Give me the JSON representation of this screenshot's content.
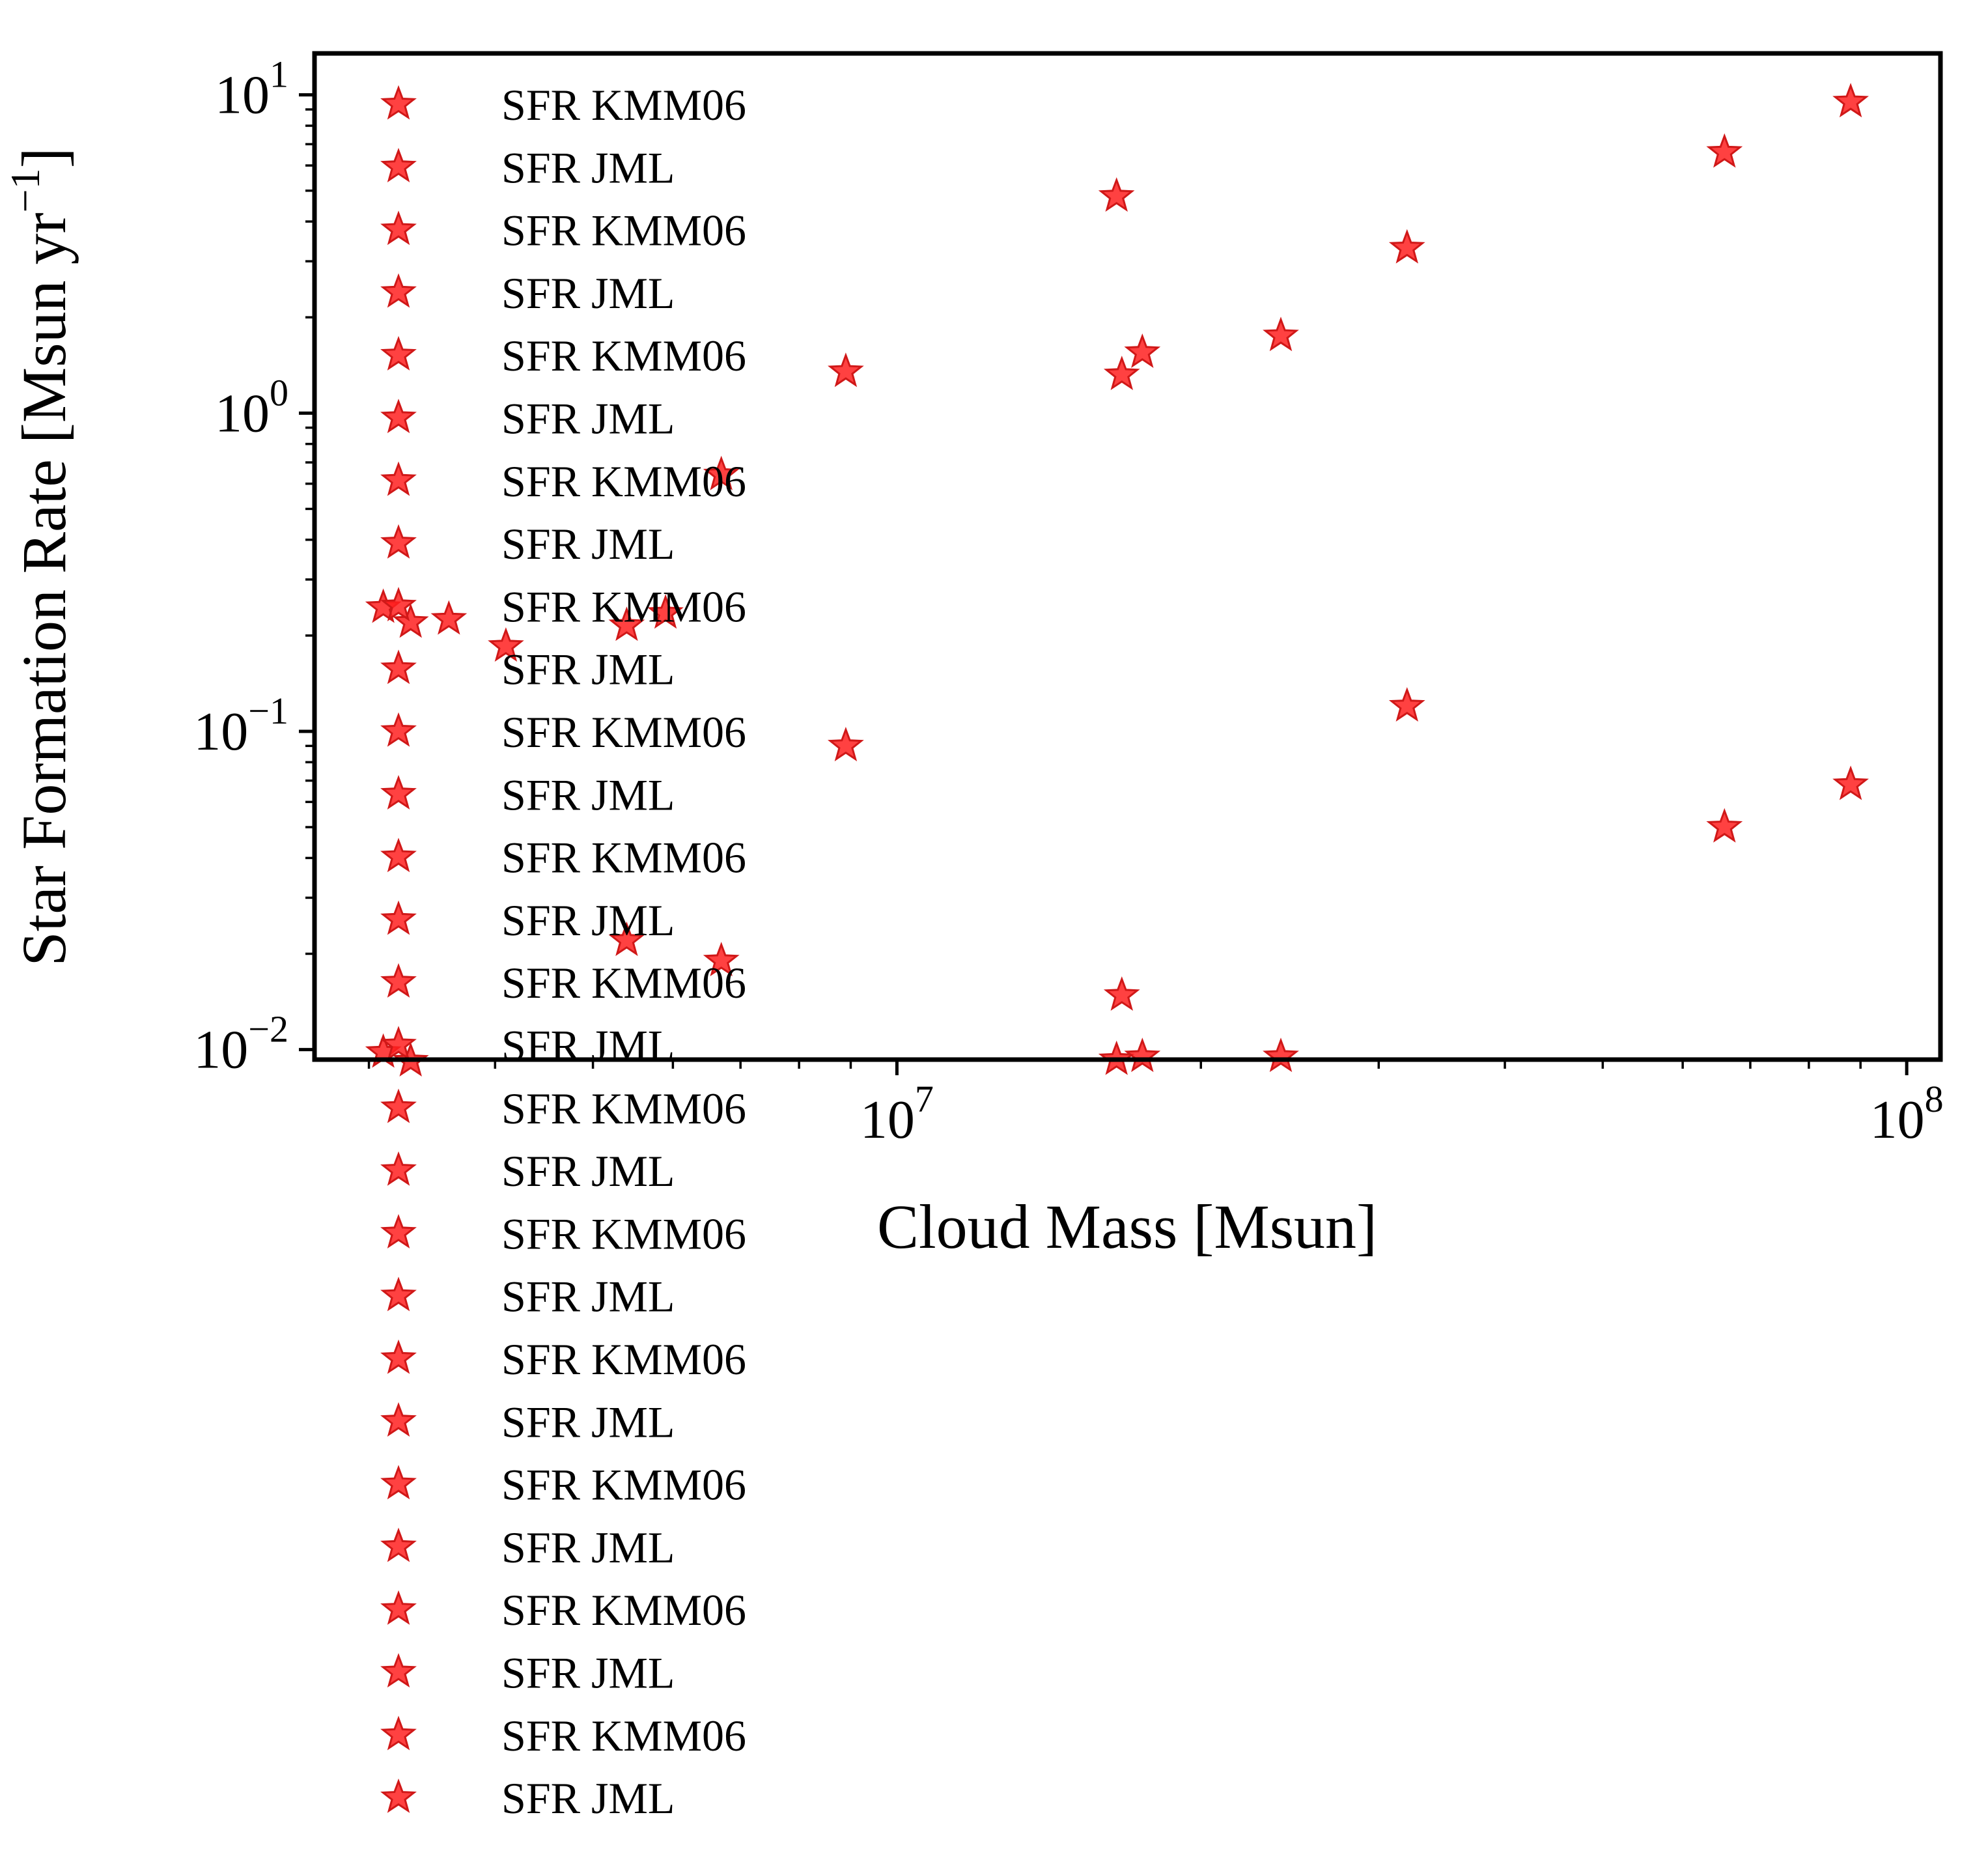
{
  "colors": {
    "marker": "#ff2020",
    "marker_edge": "#d01818",
    "axis": "#000000",
    "background": "#ffffff"
  },
  "chart_data": {
    "type": "scatter",
    "title": "",
    "xlabel": "Cloud Mass [Msun]",
    "ylabel_parts": {
      "base": "Star Formation Rate [Msun yr",
      "sup": "−1",
      "close": "]"
    },
    "xscale": "log",
    "yscale": "log",
    "xlim": [
      2650000.0,
      108000000.0
    ],
    "ylim": [
      0.0093,
      13.5
    ],
    "grid": false,
    "marker": "star",
    "xticks": [
      {
        "value": 10000000.0,
        "base": "10",
        "exp": "7"
      },
      {
        "value": 100000000.0,
        "base": "10",
        "exp": "8"
      }
    ],
    "yticks": [
      {
        "value": 10,
        "base": "10",
        "exp": "1"
      },
      {
        "value": 1,
        "base": "10",
        "exp": "0"
      },
      {
        "value": 0.1,
        "base": "10",
        "exp": "−1"
      },
      {
        "value": 0.01,
        "base": "10",
        "exp": "−2"
      }
    ],
    "legend": {
      "location": "upper-left",
      "entries": [
        "SFR KMM06",
        "SFR JML",
        "SFR KMM06",
        "SFR JML",
        "SFR KMM06",
        "SFR JML",
        "SFR KMM06",
        "SFR JML",
        "SFR KMM06",
        "SFR JML",
        "SFR KMM06",
        "SFR JML",
        "SFR KMM06",
        "SFR JML",
        "SFR KMM06",
        "SFR JML",
        "SFR KMM06",
        "SFR JML",
        "SFR KMM06",
        "SFR JML",
        "SFR KMM06",
        "SFR JML",
        "SFR KMM06",
        "SFR JML",
        "SFR KMM06",
        "SFR JML",
        "SFR KMM06",
        "SFR JML"
      ]
    },
    "series": [
      {
        "name": "SFR KMM06",
        "points": [
          [
            3100000.0,
            0.245
          ],
          [
            3300000.0,
            0.22
          ],
          [
            3600000.0,
            0.225
          ],
          [
            4100000.0,
            0.185
          ],
          [
            5400000.0,
            0.215
          ],
          [
            5900000.0,
            0.235
          ],
          [
            6700000.0,
            0.64
          ],
          [
            8900000.0,
            1.35
          ],
          [
            16500000.0,
            4.8
          ],
          [
            16700000.0,
            1.32
          ],
          [
            17500000.0,
            1.55
          ],
          [
            24000000.0,
            1.75
          ],
          [
            32000000.0,
            3.3
          ],
          [
            66000000.0,
            6.6
          ],
          [
            88000000.0,
            9.5
          ]
        ]
      },
      {
        "name": "SFR JML",
        "points": [
          [
            3100000.0,
            0.0098
          ],
          [
            3300000.0,
            0.0092
          ],
          [
            5400000.0,
            0.022
          ],
          [
            6700000.0,
            0.019
          ],
          [
            8900000.0,
            0.09
          ],
          [
            16700000.0,
            0.0148
          ],
          [
            16500000.0,
            0.0093
          ],
          [
            17500000.0,
            0.0095
          ],
          [
            24000000.0,
            0.0095
          ],
          [
            32000000.0,
            0.12
          ],
          [
            66000000.0,
            0.05
          ],
          [
            88000000.0,
            0.068
          ]
        ]
      }
    ]
  }
}
